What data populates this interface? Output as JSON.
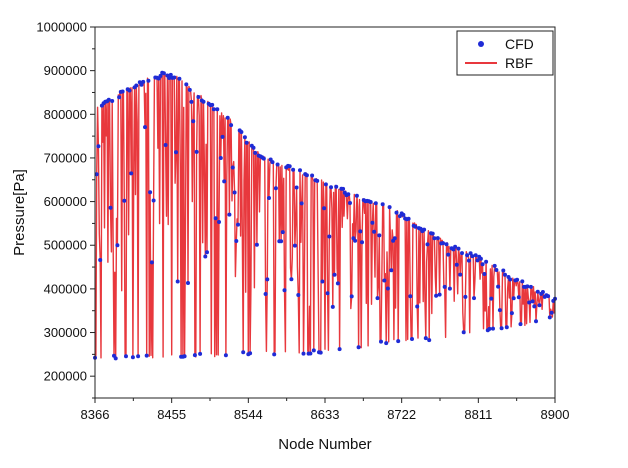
{
  "chart_data": {
    "type": "line",
    "xlabel": "Node Number",
    "ylabel": "Pressure[Pa]",
    "xlim": [
      8366,
      8900
    ],
    "ylim": [
      150000,
      1000000
    ],
    "x_ticks": [
      8366,
      8455,
      8544,
      8633,
      8722,
      8811,
      8900
    ],
    "x_tick_labels": [
      "8366",
      "8455",
      "8544",
      "8633",
      "8722",
      "8811",
      "8900"
    ],
    "y_ticks": [
      200000,
      300000,
      400000,
      500000,
      600000,
      700000,
      800000,
      900000,
      1000000
    ],
    "y_tick_labels": [
      "200000",
      "300000",
      "400000",
      "500000",
      "600000",
      "700000",
      "800000",
      "900000",
      "1000000"
    ],
    "grid": false,
    "legend_position": "top-right",
    "series": [
      {
        "name": "CFD",
        "style": "markers",
        "color": "#1f2bd6",
        "upper_envelope": {
          "x": [
            8366,
            8375,
            8390,
            8405,
            8420,
            8435,
            8445,
            8455,
            8465,
            8480,
            8500,
            8520,
            8530,
            8544,
            8560,
            8580,
            8600,
            8620,
            8633,
            8660,
            8680,
            8700,
            8722,
            8740,
            8760,
            8780,
            8800,
            8811,
            8830,
            8850,
            8870,
            8890,
            8900
          ],
          "y": [
            825000,
            830000,
            845000,
            865000,
            878000,
            888000,
            896000,
            893000,
            885000,
            860000,
            825000,
            795000,
            775000,
            740000,
            705000,
            690000,
            675000,
            660000,
            650000,
            625000,
            610000,
            595000,
            575000,
            550000,
            525000,
            500000,
            485000,
            475000,
            455000,
            430000,
            410000,
            390000,
            380000
          ]
        },
        "lower_envelope": {
          "x": [
            8366,
            8390,
            8420,
            8455,
            8490,
            8520,
            8544,
            8580,
            8620,
            8633,
            8680,
            8722,
            8760,
            8811,
            8850,
            8880,
            8900
          ],
          "y": [
            240000,
            240000,
            240000,
            241000,
            244000,
            244000,
            248000,
            250000,
            252000,
            255000,
            265000,
            280000,
            282000,
            300000,
            310000,
            320000,
            330000
          ]
        }
      },
      {
        "name": "RBF",
        "style": "line",
        "color": "#e8383d",
        "note_values_follow_cfd": true
      }
    ]
  }
}
